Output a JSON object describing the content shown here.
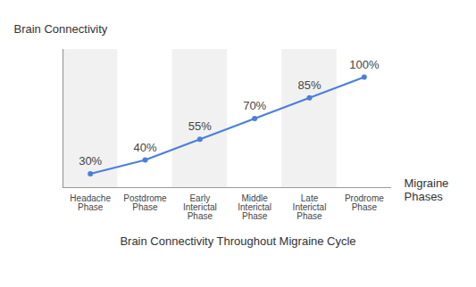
{
  "chart_data": {
    "type": "line",
    "title": "Brain Connectivity Throughout Migraine Cycle",
    "xlabel": "Migraine Phases",
    "ylabel": "Brain Connectivity",
    "categories": [
      "Headache Phase",
      "Postdrome Phase",
      "Early Interictal Phase",
      "Middle Interictal Phase",
      "Late Interictal Phase",
      "Prodrome Phase"
    ],
    "values": [
      30,
      40,
      55,
      70,
      85,
      100
    ],
    "value_labels": [
      "30%",
      "40%",
      "55%",
      "70%",
      "85%",
      "100%"
    ],
    "color": "#4a7fdc",
    "marker": "circle",
    "ylim": [
      20,
      120
    ],
    "data_labels": true,
    "tick_labels": "x"
  }
}
